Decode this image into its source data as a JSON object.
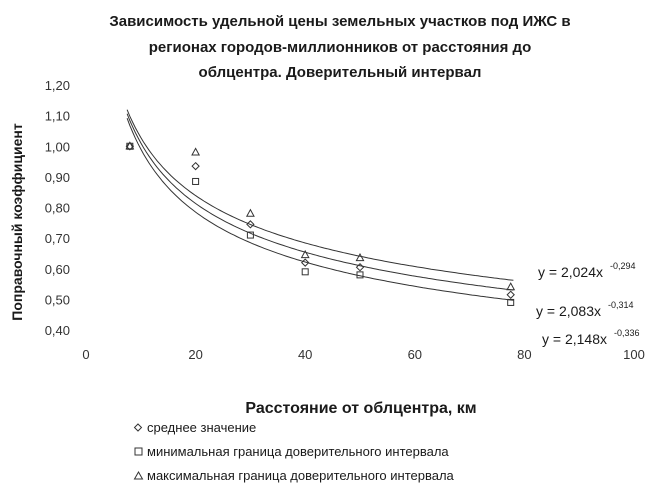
{
  "chart_data": {
    "type": "scatter",
    "title_lines": [
      "Зависимость удельной цены земельных участков под ИЖС в",
      "регионах городов-миллионников от расстояния до",
      "облцентра. Доверительный интервал"
    ],
    "xlabel": "Расстояние от облцентра, км",
    "ylabel": "Поправочный коэффициент",
    "xlim": [
      0,
      100
    ],
    "ylim": [
      0.4,
      1.2
    ],
    "x_ticks": [
      "0",
      "20",
      "40",
      "60",
      "80",
      "100"
    ],
    "y_ticks": [
      "0,40",
      "0,50",
      "0,60",
      "0,70",
      "0,80",
      "0,90",
      "1,00",
      "1,10",
      "1,20"
    ],
    "grid": false,
    "legend_position": "bottom",
    "series": [
      {
        "name": "среднее значение",
        "marker": "diamond",
        "x": [
          8,
          20,
          30,
          40,
          50,
          77.5
        ],
        "y": [
          1.0,
          0.935,
          0.745,
          0.62,
          0.605,
          0.515
        ]
      },
      {
        "name": "минимальная граница доверительного интервала",
        "marker": "square",
        "x": [
          8,
          20,
          30,
          40,
          50,
          77.5
        ],
        "y": [
          1.0,
          0.885,
          0.71,
          0.59,
          0.58,
          0.49
        ]
      },
      {
        "name": "максимальная граница доверительного интервала",
        "marker": "triangle",
        "x": [
          8,
          20,
          30,
          40,
          50,
          77.5
        ],
        "y": [
          1.0,
          0.98,
          0.78,
          0.645,
          0.635,
          0.54
        ]
      }
    ],
    "trendlines": [
      {
        "a": 2.024,
        "b": -0.294,
        "label_base": "y = 2,024x",
        "label_exp": "-0,294"
      },
      {
        "a": 2.083,
        "b": -0.314,
        "label_base": "y = 2,083x",
        "label_exp": "-0,314"
      },
      {
        "a": 2.148,
        "b": -0.336,
        "label_base": "y = 2,148x",
        "label_exp": "-0,336"
      }
    ]
  }
}
